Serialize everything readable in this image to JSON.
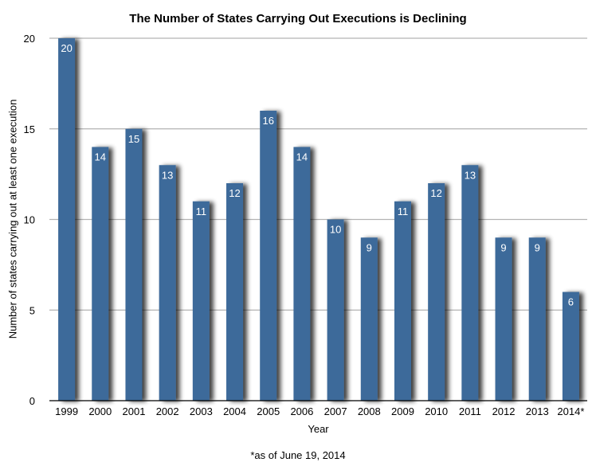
{
  "chart_data": {
    "type": "bar",
    "title": "The Number of States Carrying Out Executions is Declining",
    "xlabel": "Year",
    "ylabel": "Number of states carrying out at least one execution",
    "categories": [
      "1999",
      "2000",
      "2001",
      "2002",
      "2003",
      "2004",
      "2005",
      "2006",
      "2007",
      "2008",
      "2009",
      "2010",
      "2011",
      "2012",
      "2013",
      "2014*"
    ],
    "values": [
      20,
      14,
      15,
      13,
      11,
      12,
      16,
      14,
      10,
      9,
      11,
      12,
      13,
      9,
      9,
      6
    ],
    "ylim": [
      0,
      20
    ],
    "yticks": [
      0,
      5,
      10,
      15,
      20
    ],
    "grid": true,
    "legend": "none",
    "data_labels": true,
    "footnote": "*as of June 19, 2014",
    "colors": {
      "bar": "#3e6a9a",
      "grid": "#b3b3b3",
      "axis": "#000000"
    }
  }
}
